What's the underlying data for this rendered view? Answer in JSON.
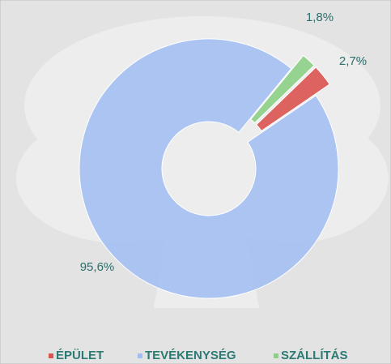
{
  "chart_data": {
    "type": "donut",
    "categories": [
      "ÉPÜLET",
      "TEVÉKENYSÉG",
      "SZÁLLÍTÁS"
    ],
    "values": [
      2.7,
      95.6,
      1.8
    ],
    "value_labels": [
      "2,7%",
      "95,6%",
      "1,8%"
    ],
    "colors": [
      "#d9534f",
      "#a3bff2",
      "#8ccf86"
    ],
    "legend": "bottom"
  }
}
